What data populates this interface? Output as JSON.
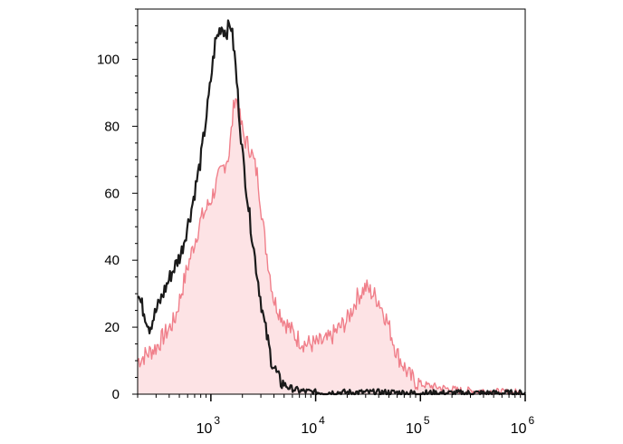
{
  "chart_data": {
    "type": "area",
    "title": "",
    "xlabel": "",
    "ylabel": "",
    "x_scale": "log",
    "xlim": [
      200,
      1000000
    ],
    "ylim": [
      0,
      115
    ],
    "grid": false,
    "legend": "none",
    "x_ticks": [
      {
        "value": 1000,
        "base": "10",
        "exp": "3"
      },
      {
        "value": 10000,
        "base": "10",
        "exp": "4"
      },
      {
        "value": 100000,
        "base": "10",
        "exp": "5"
      },
      {
        "value": 1000000,
        "base": "10",
        "exp": "6"
      }
    ],
    "y_ticks": [
      {
        "value": 0,
        "label": "0"
      },
      {
        "value": 20,
        "label": "20"
      },
      {
        "value": 40,
        "label": "40"
      },
      {
        "value": 60,
        "label": "60"
      },
      {
        "value": 80,
        "label": "80"
      },
      {
        "value": 100,
        "label": "100"
      }
    ],
    "series": [
      {
        "style": "filled",
        "line_color": "#f07f8a",
        "fill_color": "#fde3e5",
        "x": [
          200,
          300,
          450,
          600,
          800,
          1000,
          1200,
          1500,
          1700,
          1900,
          2100,
          2400,
          2800,
          3300,
          4000,
          5000,
          6500,
          8000,
          10000,
          13000,
          16000,
          20000,
          25000,
          30000,
          35000,
          40000,
          48000,
          60000,
          80000,
          100000,
          150000,
          250000,
          400000,
          600000,
          1000000
        ],
        "y": [
          10,
          14,
          22,
          38,
          52,
          58,
          65,
          72,
          90,
          82,
          76,
          73,
          65,
          45,
          28,
          22,
          17,
          15,
          15,
          16,
          19,
          22,
          29,
          32,
          30,
          28,
          22,
          12,
          5,
          3,
          2,
          1,
          1,
          0.5,
          0.5
        ]
      },
      {
        "style": "line",
        "line_color": "#1a1a1a",
        "x": [
          200,
          260,
          330,
          420,
          520,
          650,
          800,
          950,
          1100,
          1250,
          1400,
          1550,
          1700,
          1850,
          2000,
          2300,
          2700,
          3200,
          3800,
          4500,
          5500,
          7000,
          10000,
          20000,
          50000,
          100000,
          1000000
        ],
        "y": [
          30,
          20,
          28,
          36,
          42,
          55,
          70,
          88,
          105,
          110,
          108,
          111,
          100,
          85,
          72,
          55,
          38,
          22,
          10,
          4,
          2,
          1,
          0.5,
          0.5,
          0.5,
          0.3,
          0.3
        ]
      }
    ]
  }
}
